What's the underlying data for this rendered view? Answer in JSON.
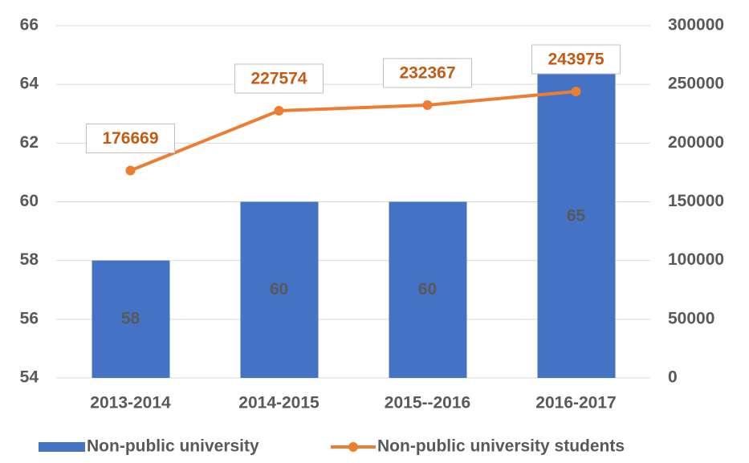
{
  "chart_data": {
    "type": "bar_line",
    "categories": [
      "2013-2014",
      "2014-2015",
      "2015--2016",
      "2016-2017"
    ],
    "series": [
      {
        "name": "Non-public university",
        "color": "#4472c4",
        "type": "bar",
        "values": [
          58,
          60,
          60,
          65
        ]
      },
      {
        "name": "Non-public university students",
        "color": "#ed7d31",
        "type": "line",
        "axis": "y2",
        "values": [
          176669,
          227574,
          232367,
          243975
        ]
      }
    ],
    "ylim": [
      54,
      66
    ],
    "yticks": [
      54,
      56,
      58,
      60,
      62,
      64,
      66
    ],
    "y2lim": [
      0,
      300000
    ],
    "y2ticks": [
      0,
      50000,
      100000,
      150000,
      200000,
      250000,
      300000
    ],
    "grid": true,
    "legend": "bottom"
  }
}
